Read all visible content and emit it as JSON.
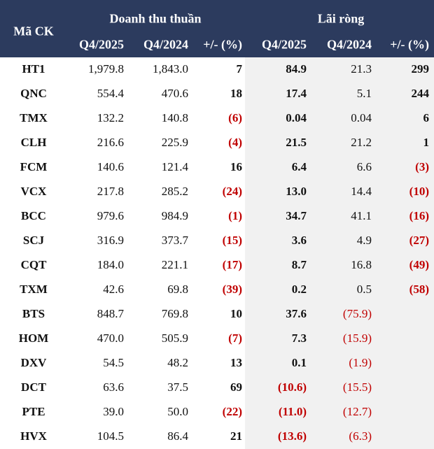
{
  "header": {
    "ticker": "Mã CK",
    "groups": [
      "Doanh thu thuần",
      "Lãi ròng"
    ],
    "columns": [
      "Q4/2025",
      "Q4/2024",
      "+/- (%)",
      "Q4/2025",
      "Q4/2024",
      "+/- (%)"
    ]
  },
  "table": {
    "rows": [
      [
        "HT1",
        "1,979.8",
        "1,843.0",
        "7",
        "84.9",
        "21.3",
        "299"
      ],
      [
        "QNC",
        "554.4",
        "470.6",
        "18",
        "17.4",
        "5.1",
        "244"
      ],
      [
        "TMX",
        "132.2",
        "140.8",
        "(6)",
        "0.04",
        "0.04",
        "6"
      ],
      [
        "CLH",
        "216.6",
        "225.9",
        "(4)",
        "21.5",
        "21.2",
        "1"
      ],
      [
        "FCM",
        "140.6",
        "121.4",
        "16",
        "6.4",
        "6.6",
        "(3)"
      ],
      [
        "VCX",
        "217.8",
        "285.2",
        "(24)",
        "13.0",
        "14.4",
        "(10)"
      ],
      [
        "BCC",
        "979.6",
        "984.9",
        "(1)",
        "34.7",
        "41.1",
        "(16)"
      ],
      [
        "SCJ",
        "316.9",
        "373.7",
        "(15)",
        "3.6",
        "4.9",
        "(27)"
      ],
      [
        "CQT",
        "184.0",
        "221.1",
        "(17)",
        "8.7",
        "16.8",
        "(49)"
      ],
      [
        "TXM",
        "42.6",
        "69.8",
        "(39)",
        "0.2",
        "0.5",
        "(58)"
      ],
      [
        "BTS",
        "848.7",
        "769.8",
        "10",
        "37.6",
        "(75.9)"
      ],
      [
        "HOM",
        "470.0",
        "505.9",
        "(7)",
        "7.3",
        "(15.9)"
      ],
      [
        "DXV",
        "54.5",
        "48.2",
        "13",
        "0.1",
        "(1.9)"
      ],
      [
        "DCT",
        "63.6",
        "37.5",
        "69",
        "(10.6)",
        "(15.5)"
      ],
      [
        "PTE",
        "39.0",
        "50.0",
        "(22)",
        "(11.0)",
        "(12.7)"
      ],
      [
        "HVX",
        "104.5",
        "86.4",
        "21",
        "(13.6)",
        "(6.3)"
      ]
    ]
  }
}
